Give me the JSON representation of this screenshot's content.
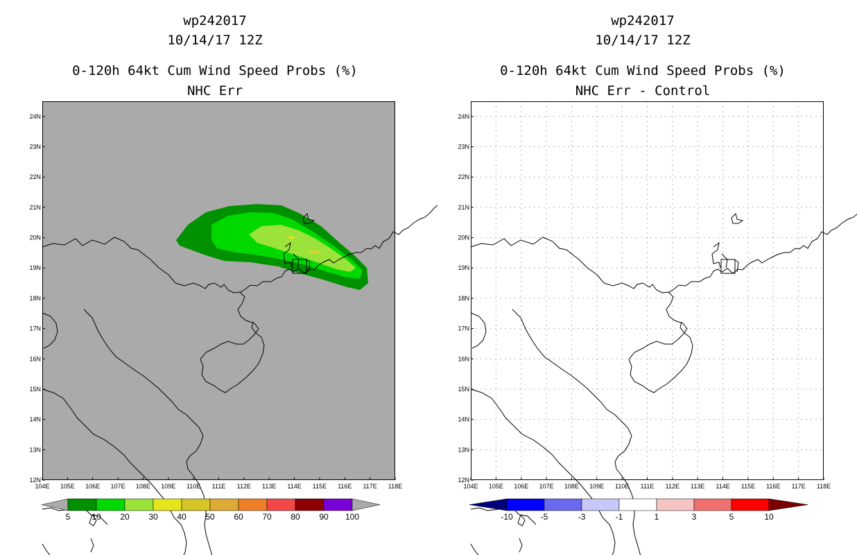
{
  "left": {
    "title1": "wp242017",
    "title2": "10/14/17 12Z",
    "title3": "0-120h 64kt Cum Wind Speed Probs (%)",
    "title4": "NHC Err",
    "legend": {
      "labels": [
        "5",
        "10",
        "20",
        "30",
        "40",
        "50",
        "60",
        "70",
        "80",
        "90",
        "100"
      ],
      "colors": [
        "#009100",
        "#00d900",
        "#9be23b",
        "#e4e51d",
        "#d6c527",
        "#deaa33",
        "#ee7f26",
        "#f24848",
        "#8e0000",
        "#7a00d8"
      ]
    }
  },
  "right": {
    "title1": "wp242017",
    "title2": "10/14/17 12Z",
    "title3": "0-120h 64kt Cum Wind Speed Probs (%)",
    "title4": "NHC Err - Control",
    "legend": {
      "labels": [
        "-10",
        "-5",
        "-3",
        "-1",
        "1",
        "3",
        "5",
        "10"
      ],
      "colors": [
        "#0000ff",
        "#6a6af0",
        "#c8c8f8",
        "#ffffff",
        "#f7c4c4",
        "#f07070",
        "#ff0000"
      ],
      "end_low": "#00007a",
      "end_high": "#7a0000"
    }
  },
  "axes": {
    "lon_labels": [
      "104E",
      "105E",
      "106E",
      "107E",
      "108E",
      "109E",
      "110E",
      "111E",
      "112E",
      "113E",
      "114E",
      "115E",
      "116E",
      "117E",
      "118E"
    ],
    "lat_labels": [
      "12N",
      "13N",
      "14N",
      "15N",
      "16N",
      "17N",
      "18N",
      "19N",
      "20N",
      "21N",
      "22N",
      "23N",
      "24N"
    ],
    "lon_range": [
      104,
      118
    ],
    "lat_range": [
      12,
      24.5
    ]
  },
  "colors": {
    "map_bg_left": "#aaaaaa",
    "map_bg_right": "#ffffff",
    "grid_right": "#b4b4b4"
  }
}
